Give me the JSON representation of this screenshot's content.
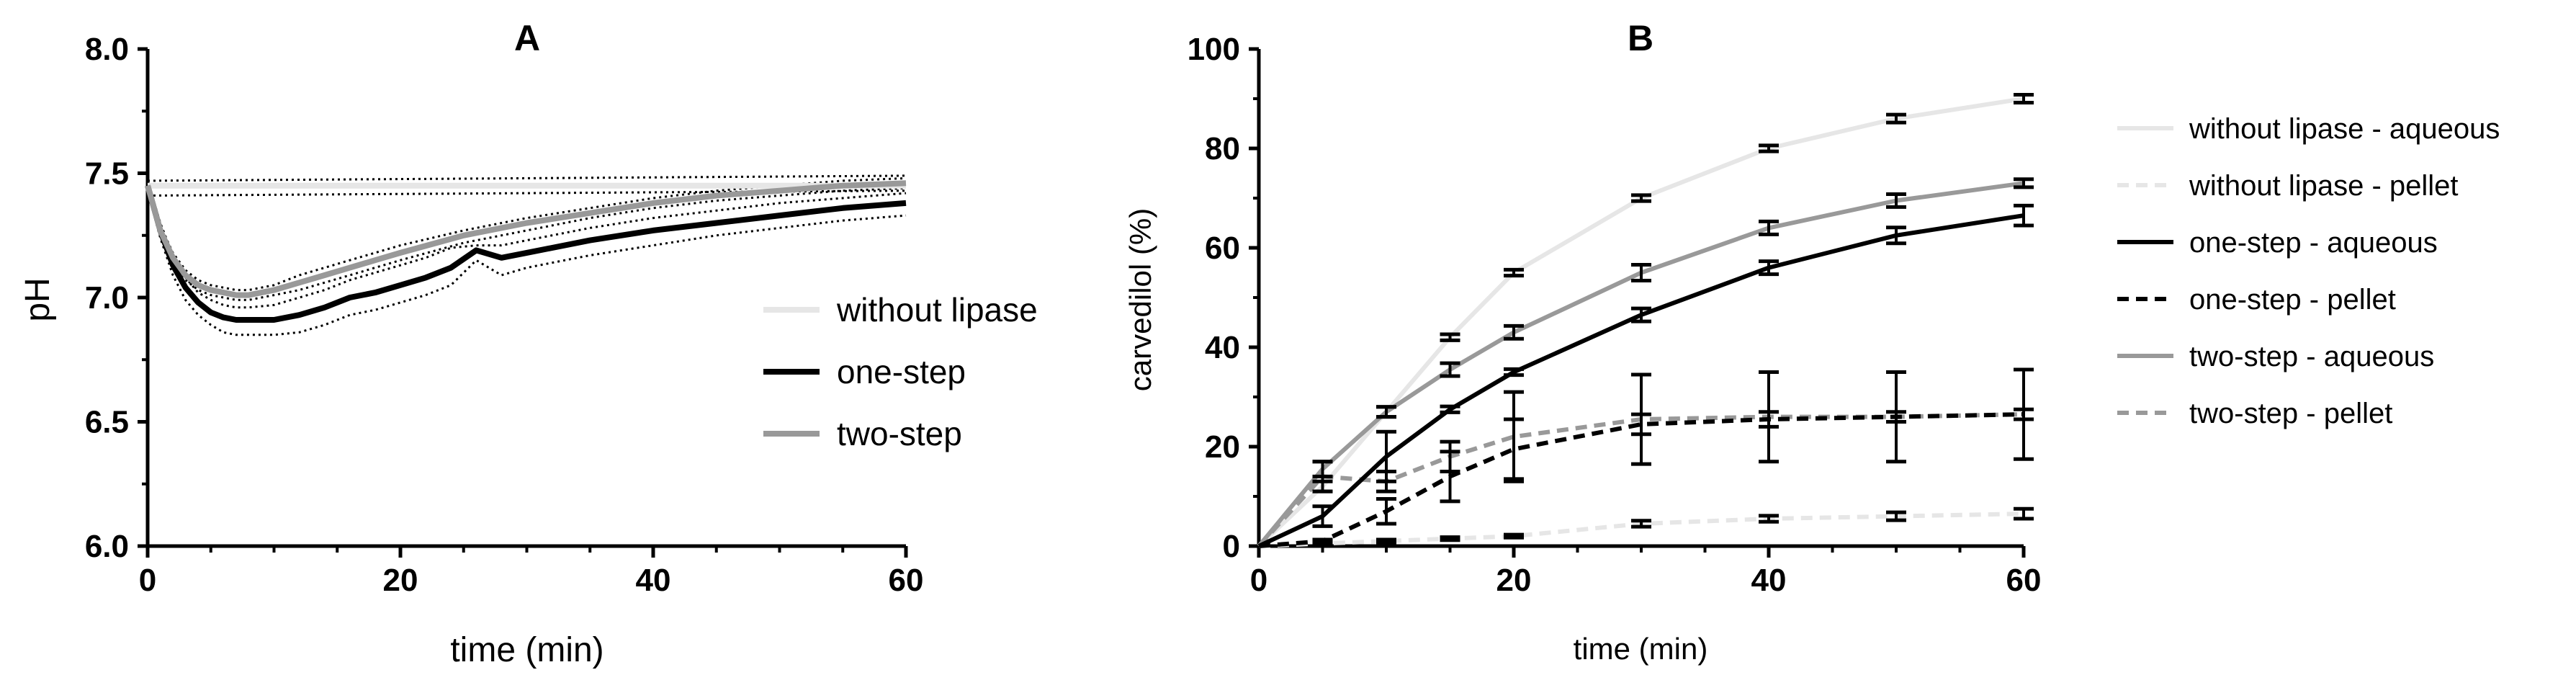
{
  "chart_data": [
    {
      "panel": "A",
      "type": "line",
      "title": "A",
      "xlabel": "time (min)",
      "ylabel": "pH",
      "xlim": [
        0,
        60
      ],
      "ylim": [
        6.0,
        8.0
      ],
      "xticks": [
        0,
        20,
        40,
        60
      ],
      "yticks": [
        6.0,
        6.5,
        7.0,
        7.5,
        8.0
      ],
      "ytick_labels": [
        "6.0",
        "6.5",
        "7.0",
        "7.5",
        "8.0"
      ],
      "legend_position": "right",
      "series": [
        {
          "name": "without lipase",
          "color": "#e6e6e6",
          "x": [
            0,
            60
          ],
          "y": [
            7.45,
            7.45
          ],
          "band_upper": [
            7.47,
            7.49
          ],
          "band_lower": [
            7.41,
            7.43
          ]
        },
        {
          "name": "one-step",
          "color": "#000000",
          "x": [
            0,
            1,
            2,
            3,
            4,
            5,
            6,
            7,
            8,
            10,
            12,
            14,
            16,
            18,
            20,
            22,
            24,
            26,
            28,
            30,
            35,
            40,
            45,
            50,
            55,
            60
          ],
          "y": [
            7.45,
            7.27,
            7.13,
            7.04,
            6.98,
            6.94,
            6.92,
            6.91,
            6.91,
            6.91,
            6.93,
            6.96,
            7.0,
            7.02,
            7.05,
            7.08,
            7.12,
            7.19,
            7.16,
            7.18,
            7.23,
            7.27,
            7.3,
            7.33,
            7.36,
            7.38
          ],
          "band_upper": [
            7.47,
            7.3,
            7.17,
            7.08,
            7.02,
            6.99,
            6.97,
            6.96,
            6.96,
            6.97,
            7.0,
            7.03,
            7.07,
            7.1,
            7.13,
            7.16,
            7.2,
            7.21,
            7.21,
            7.23,
            7.28,
            7.32,
            7.35,
            7.38,
            7.4,
            7.42
          ],
          "band_lower": [
            7.43,
            7.24,
            7.09,
            6.99,
            6.93,
            6.89,
            6.86,
            6.85,
            6.85,
            6.85,
            6.86,
            6.89,
            6.93,
            6.95,
            6.98,
            7.01,
            7.05,
            7.15,
            7.09,
            7.12,
            7.17,
            7.21,
            7.25,
            7.28,
            7.31,
            7.33
          ]
        },
        {
          "name": "two-step",
          "color": "#999999",
          "x": [
            0,
            1,
            2,
            3,
            4,
            5,
            6,
            7,
            8,
            10,
            12,
            14,
            16,
            18,
            20,
            25,
            30,
            35,
            40,
            45,
            50,
            55,
            60
          ],
          "y": [
            7.45,
            7.27,
            7.16,
            7.09,
            7.05,
            7.03,
            7.02,
            7.01,
            7.01,
            7.03,
            7.06,
            7.09,
            7.12,
            7.15,
            7.18,
            7.25,
            7.3,
            7.34,
            7.38,
            7.41,
            7.43,
            7.45,
            7.46
          ],
          "band_upper": [
            7.47,
            7.29,
            7.18,
            7.11,
            7.07,
            7.05,
            7.04,
            7.03,
            7.03,
            7.05,
            7.09,
            7.12,
            7.15,
            7.18,
            7.21,
            7.27,
            7.32,
            7.36,
            7.4,
            7.43,
            7.45,
            7.47,
            7.48
          ],
          "band_lower": [
            7.43,
            7.25,
            7.14,
            7.07,
            7.03,
            7.01,
            7.0,
            6.99,
            6.99,
            7.01,
            7.03,
            7.06,
            7.09,
            7.12,
            7.15,
            7.22,
            7.27,
            7.32,
            7.36,
            7.39,
            7.41,
            7.43,
            7.44
          ]
        }
      ]
    },
    {
      "panel": "B",
      "type": "line",
      "title": "B",
      "xlabel": "time (min)",
      "ylabel": "carvedilol (%)",
      "xlim": [
        0,
        60
      ],
      "ylim": [
        0,
        100
      ],
      "xticks": [
        0,
        20,
        40,
        60
      ],
      "yticks": [
        0,
        20,
        40,
        60,
        80,
        100
      ],
      "legend_position": "right",
      "x": [
        0,
        5,
        10,
        15,
        20,
        30,
        40,
        50,
        60
      ],
      "series": [
        {
          "name": "without lipase - aqueous",
          "color": "#e6e6e6",
          "dash": "solid",
          "values": [
            0,
            12,
            27,
            42,
            55,
            70,
            80,
            86,
            90
          ],
          "errors": [
            0,
            1,
            1,
            0.6,
            0.6,
            0.6,
            0.6,
            0.8,
            0.8
          ]
        },
        {
          "name": "without lipase - pellet",
          "color": "#e6e6e6",
          "dash": "dashed",
          "values": [
            0,
            0.5,
            1,
            1.5,
            2,
            4.5,
            5.5,
            6,
            6.5
          ],
          "errors": [
            0,
            0.3,
            0.3,
            0.3,
            0.3,
            0.6,
            0.6,
            0.8,
            1
          ]
        },
        {
          "name": "one-step - aqueous",
          "color": "#000000",
          "dash": "solid",
          "values": [
            0,
            6,
            18,
            27.5,
            35,
            46.5,
            56,
            62.5,
            66.5
          ],
          "errors": [
            0,
            2,
            5,
            0.6,
            0.6,
            1.3,
            1.3,
            1.6,
            2
          ]
        },
        {
          "name": "one-step - pellet",
          "color": "#000000",
          "dash": "dashed",
          "values": [
            0,
            1,
            7,
            14,
            19.5,
            24.5,
            25.5,
            26,
            26.5
          ],
          "errors": [
            0,
            0.3,
            2.5,
            5,
            6,
            2,
            1.5,
            1,
            1
          ]
        },
        {
          "name": "two-step - aqueous",
          "color": "#999999",
          "dash": "solid",
          "values": [
            0,
            15.5,
            27,
            35.5,
            43,
            55,
            64,
            69.5,
            73
          ],
          "errors": [
            0,
            1.5,
            1,
            1.3,
            1.3,
            1.6,
            1.3,
            1.3,
            0.8
          ]
        },
        {
          "name": "two-step - pellet",
          "color": "#999999",
          "dash": "dashed",
          "values": [
            0,
            14,
            13,
            18,
            22,
            25.5,
            26,
            26,
            26.5
          ],
          "errors": [
            0,
            3,
            2,
            3,
            9,
            9,
            9,
            9,
            9
          ]
        }
      ]
    }
  ]
}
